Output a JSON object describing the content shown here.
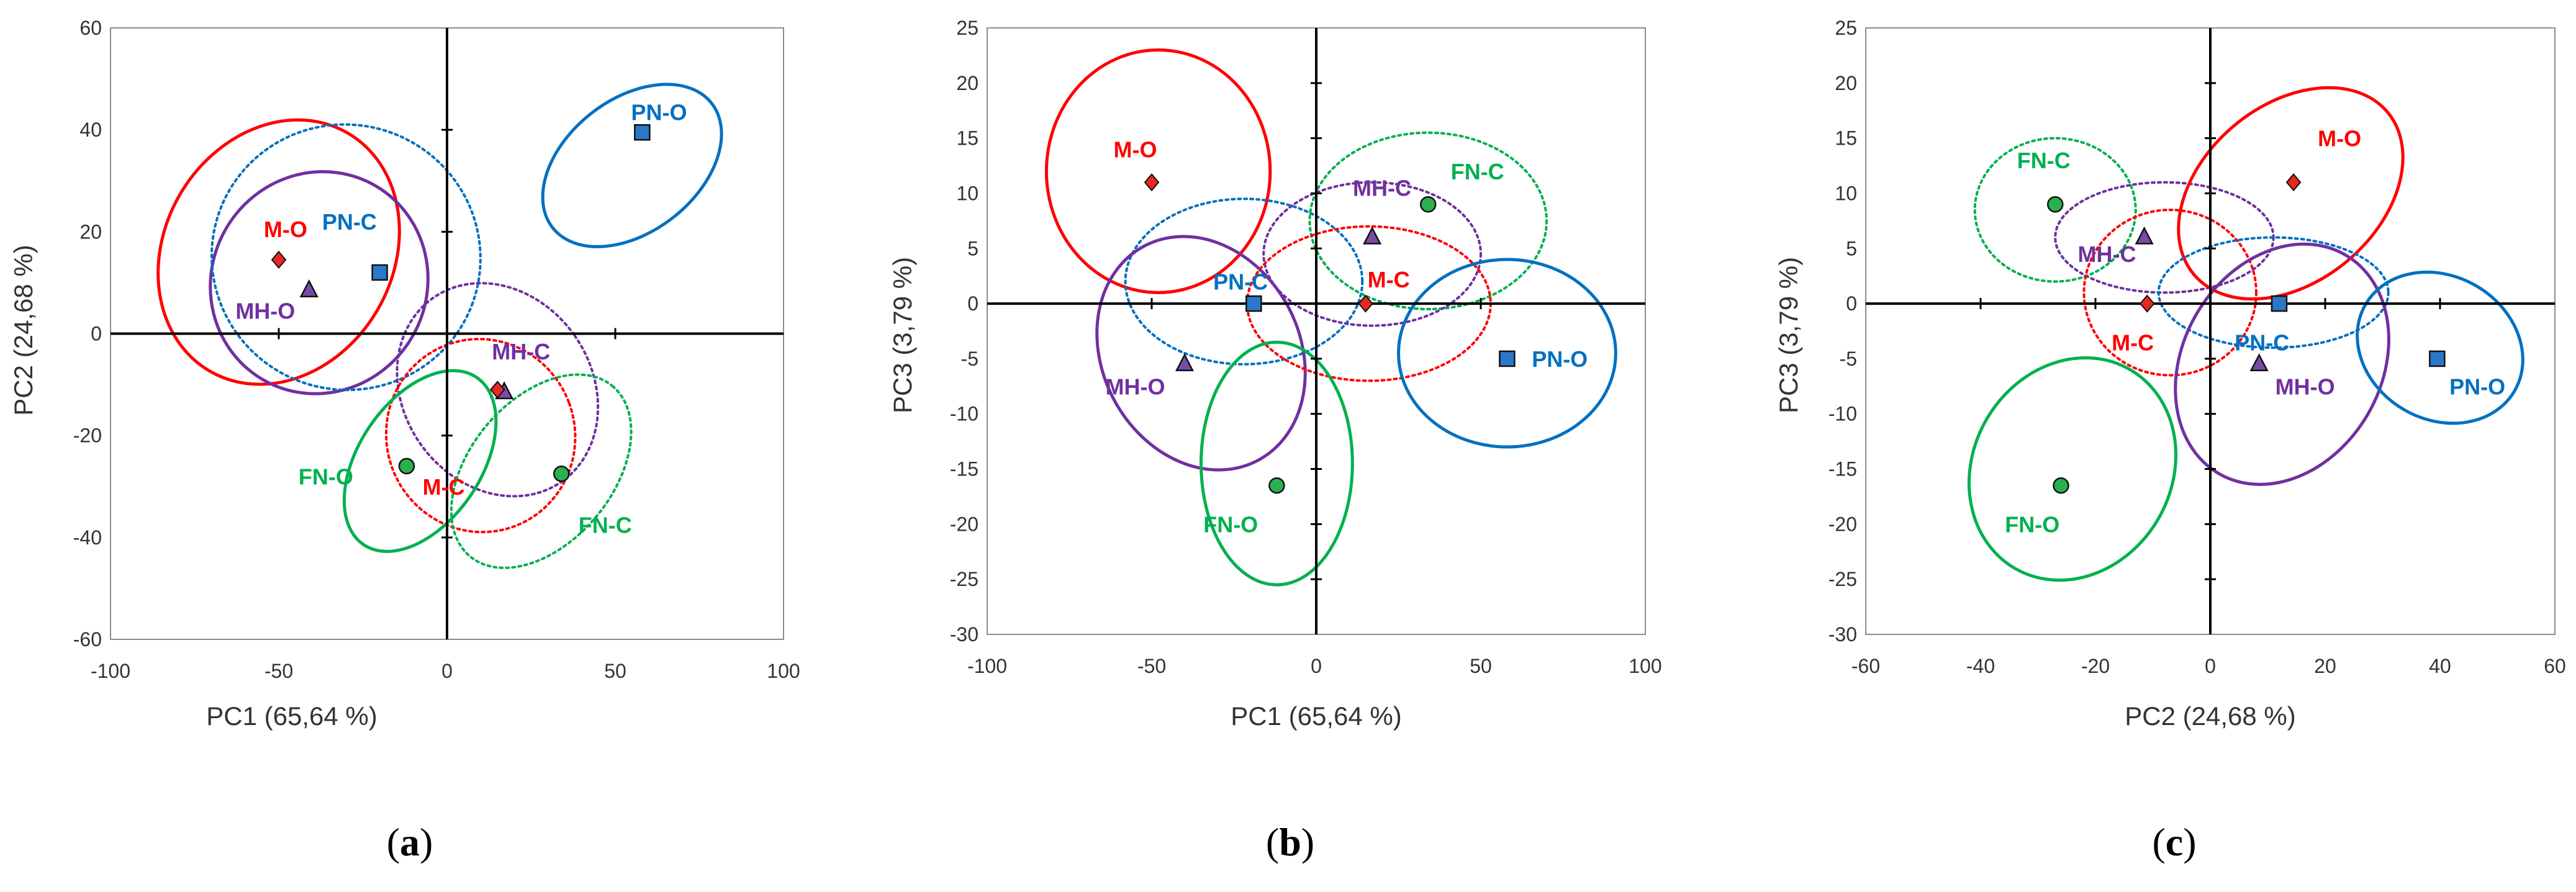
{
  "colors": {
    "M": "#ff0000",
    "MH": "#7030a0",
    "PN": "#0070c0",
    "FN": "#00b050",
    "marker_M": "#e8281e",
    "marker_MH": "#7a4aa8",
    "marker_PN": "#2a78c8",
    "marker_FN": "#2ab04e"
  },
  "chart_data": [
    {
      "type": "scatter",
      "panel_label": "(a)",
      "caption_letter": "a",
      "title": "",
      "xlabel": "PC1 (65,64 %)",
      "ylabel": "PC2 (24,68 %)",
      "xlim": [
        -100,
        100
      ],
      "ylim": [
        -60,
        60
      ],
      "xticks": [
        -100,
        -50,
        0,
        50,
        100
      ],
      "yticks": [
        -60,
        -40,
        -20,
        0,
        20,
        40,
        60
      ],
      "grid": false,
      "points": [
        {
          "name": "M-O",
          "group": "M",
          "marker": "diamond",
          "x": -50,
          "y": 14.5,
          "label_dx": 2,
          "label_dy": 6
        },
        {
          "name": "MH-O",
          "group": "MH",
          "marker": "triangle",
          "x": -41,
          "y": 8.5,
          "label_dx": -13,
          "label_dy": -4
        },
        {
          "name": "PN-O",
          "group": "PN",
          "marker": "square",
          "x": 58,
          "y": 39.5,
          "label_dx": 5,
          "label_dy": 4
        },
        {
          "name": "PN-C",
          "group": "PN",
          "marker": "square",
          "x": -20,
          "y": 12,
          "label_dx": -9,
          "label_dy": 10
        },
        {
          "name": "MH-C",
          "group": "MH",
          "marker": "triangle",
          "x": 17,
          "y": -11.5,
          "label_dx": 5,
          "label_dy": 8
        },
        {
          "name": "M-C",
          "group": "M",
          "marker": "diamond",
          "x": 15,
          "y": -11,
          "label_dx": -16,
          "label_dy": -19
        },
        {
          "name": "FN-O",
          "group": "FN",
          "marker": "circle",
          "x": -12,
          "y": -26,
          "label_dx": -24,
          "label_dy": -2
        },
        {
          "name": "FN-C",
          "group": "FN",
          "marker": "circle",
          "x": 34,
          "y": -27.5,
          "label_dx": 13,
          "label_dy": -10
        }
      ],
      "ellipses": [
        {
          "group": "M",
          "style": "solid",
          "cx": -50,
          "cy": 16,
          "rx": 34,
          "ry": 27,
          "angle": -30
        },
        {
          "group": "MH",
          "style": "solid",
          "cx": -38,
          "cy": 10,
          "rx": 32,
          "ry": 22,
          "angle": -30
        },
        {
          "group": "PN",
          "style": "dotted",
          "cx": -30,
          "cy": 15,
          "rx": 40,
          "ry": 26,
          "angle": -20
        },
        {
          "group": "PN",
          "style": "solid",
          "cx": 55,
          "cy": 33,
          "rx": 30,
          "ry": 13,
          "angle": 38
        },
        {
          "group": "MH",
          "style": "dotted",
          "cx": 15,
          "cy": -11,
          "rx": 28,
          "ry": 22,
          "angle": 35
        },
        {
          "group": "M",
          "style": "dotted",
          "cx": 10,
          "cy": -20,
          "rx": 28,
          "ry": 19,
          "angle": 20
        },
        {
          "group": "FN",
          "style": "solid",
          "cx": -8,
          "cy": -25,
          "rx": 30,
          "ry": 12,
          "angle": 56
        },
        {
          "group": "FN",
          "style": "dotted",
          "cx": 28,
          "cy": -27,
          "rx": 33,
          "ry": 14,
          "angle": 50
        }
      ]
    },
    {
      "type": "scatter",
      "panel_label": "(b)",
      "caption_letter": "b",
      "title": "",
      "xlabel": "PC1 (65,64 %)",
      "ylabel": "PC3 (3,79 %)",
      "xlim": [
        -100,
        100
      ],
      "ylim": [
        -30,
        25
      ],
      "xticks": [
        -100,
        -50,
        0,
        50,
        100
      ],
      "yticks": [
        -30,
        -25,
        -20,
        -15,
        -10,
        -5,
        0,
        5,
        10,
        15,
        20,
        25
      ],
      "grid": false,
      "points": [
        {
          "name": "M-O",
          "group": "M",
          "marker": "diamond",
          "x": -50,
          "y": 11,
          "label_dx": -5,
          "label_dy": 3
        },
        {
          "name": "MH-O",
          "group": "MH",
          "marker": "triangle",
          "x": -40,
          "y": -5.5,
          "label_dx": -15,
          "label_dy": -2
        },
        {
          "name": "PN-C",
          "group": "PN",
          "marker": "square",
          "x": -19,
          "y": 0,
          "label_dx": -4,
          "label_dy": 2
        },
        {
          "name": "MH-C",
          "group": "MH",
          "marker": "triangle",
          "x": 17,
          "y": 6,
          "label_dx": 3,
          "label_dy": 4.5
        },
        {
          "name": "FN-C",
          "group": "FN",
          "marker": "circle",
          "x": 34,
          "y": 9,
          "label_dx": 15,
          "label_dy": 3
        },
        {
          "name": "M-C",
          "group": "M",
          "marker": "diamond",
          "x": 15,
          "y": 0,
          "label_dx": 7,
          "label_dy": 2.2
        },
        {
          "name": "PN-O",
          "group": "PN",
          "marker": "square",
          "x": 58,
          "y": -5,
          "label_dx": 16,
          "label_dy": 0
        },
        {
          "name": "FN-O",
          "group": "FN",
          "marker": "circle",
          "x": -12,
          "y": -16.5,
          "label_dx": -14,
          "label_dy": -3.5
        }
      ],
      "ellipses": [
        {
          "group": "M",
          "style": "solid",
          "cx": -48,
          "cy": 12,
          "rx": 34,
          "ry": 11,
          "angle": 0
        },
        {
          "group": "PN",
          "style": "dotted",
          "cx": -22,
          "cy": 2,
          "rx": 36,
          "ry": 7.5,
          "angle": 0
        },
        {
          "group": "MH",
          "style": "solid",
          "cx": -35,
          "cy": -4.5,
          "rx": 30,
          "ry": 11,
          "angle": 28
        },
        {
          "group": "FN",
          "style": "dotted",
          "cx": 34,
          "cy": 7.5,
          "rx": 36,
          "ry": 8,
          "angle": 0
        },
        {
          "group": "MH",
          "style": "dotted",
          "cx": 17,
          "cy": 4.5,
          "rx": 33,
          "ry": 6.5,
          "angle": 0
        },
        {
          "group": "M",
          "style": "dotted",
          "cx": 16,
          "cy": 0,
          "rx": 37,
          "ry": 7,
          "angle": 0
        },
        {
          "group": "PN",
          "style": "solid",
          "cx": 58,
          "cy": -4.5,
          "rx": 33,
          "ry": 8.5,
          "angle": 0
        },
        {
          "group": "FN",
          "style": "solid",
          "cx": -12,
          "cy": -14.5,
          "rx": 23,
          "ry": 11,
          "angle": 0
        }
      ]
    },
    {
      "type": "scatter",
      "panel_label": "(c)",
      "caption_letter": "c",
      "title": "",
      "xlabel": "PC2 (24,68 %)",
      "ylabel": "PC3 (3,79 %)",
      "xlim": [
        -60,
        60
      ],
      "ylim": [
        -30,
        25
      ],
      "xticks": [
        -60,
        -40,
        -20,
        0,
        20,
        40,
        60
      ],
      "yticks": [
        -30,
        -25,
        -20,
        -15,
        -10,
        -5,
        0,
        5,
        10,
        15,
        20,
        25
      ],
      "grid": false,
      "points": [
        {
          "name": "M-O",
          "group": "M",
          "marker": "diamond",
          "x": 14.5,
          "y": 11,
          "label_dx": 8,
          "label_dy": 4
        },
        {
          "name": "FN-C",
          "group": "FN",
          "marker": "circle",
          "x": -27,
          "y": 9,
          "label_dx": -2,
          "label_dy": 4
        },
        {
          "name": "MH-C",
          "group": "MH",
          "marker": "triangle",
          "x": -11.5,
          "y": 6,
          "label_dx": -6.5,
          "label_dy": -1.5
        },
        {
          "name": "M-C",
          "group": "M",
          "marker": "diamond",
          "x": -11,
          "y": 0,
          "label_dx": -2.5,
          "label_dy": -3.5
        },
        {
          "name": "PN-C",
          "group": "PN",
          "marker": "square",
          "x": 12,
          "y": 0,
          "label_dx": -3,
          "label_dy": -3.5
        },
        {
          "name": "MH-O",
          "group": "MH",
          "marker": "triangle",
          "x": 8.5,
          "y": -5.5,
          "label_dx": 8,
          "label_dy": -2
        },
        {
          "name": "PN-O",
          "group": "PN",
          "marker": "square",
          "x": 39.5,
          "y": -5,
          "label_dx": 7,
          "label_dy": -2.5
        },
        {
          "name": "FN-O",
          "group": "FN",
          "marker": "circle",
          "x": -26,
          "y": -16.5,
          "label_dx": -5,
          "label_dy": -3.5
        }
      ],
      "ellipses": [
        {
          "group": "FN",
          "style": "dotted",
          "cx": -27,
          "cy": 8.5,
          "rx": 14,
          "ry": 6.5,
          "angle": 0
        },
        {
          "group": "MH",
          "style": "dotted",
          "cx": -8,
          "cy": 6,
          "rx": 19,
          "ry": 5,
          "angle": 0
        },
        {
          "group": "M",
          "style": "dotted",
          "cx": -7,
          "cy": 1,
          "rx": 15,
          "ry": 7.5,
          "angle": 0
        },
        {
          "group": "M",
          "style": "solid",
          "cx": 14,
          "cy": 10,
          "rx": 22,
          "ry": 8,
          "angle": 40
        },
        {
          "group": "PN",
          "style": "dotted",
          "cx": 11,
          "cy": 1,
          "rx": 20,
          "ry": 5,
          "angle": 0
        },
        {
          "group": "MH",
          "style": "solid",
          "cx": 12.5,
          "cy": -5.5,
          "rx": 22,
          "ry": 9,
          "angle": 60
        },
        {
          "group": "PN",
          "style": "solid",
          "cx": 40,
          "cy": -4,
          "rx": 15,
          "ry": 6.5,
          "angle": -30
        },
        {
          "group": "FN",
          "style": "solid",
          "cx": -24,
          "cy": -15,
          "rx": 20,
          "ry": 9,
          "angle": 60
        }
      ]
    }
  ]
}
